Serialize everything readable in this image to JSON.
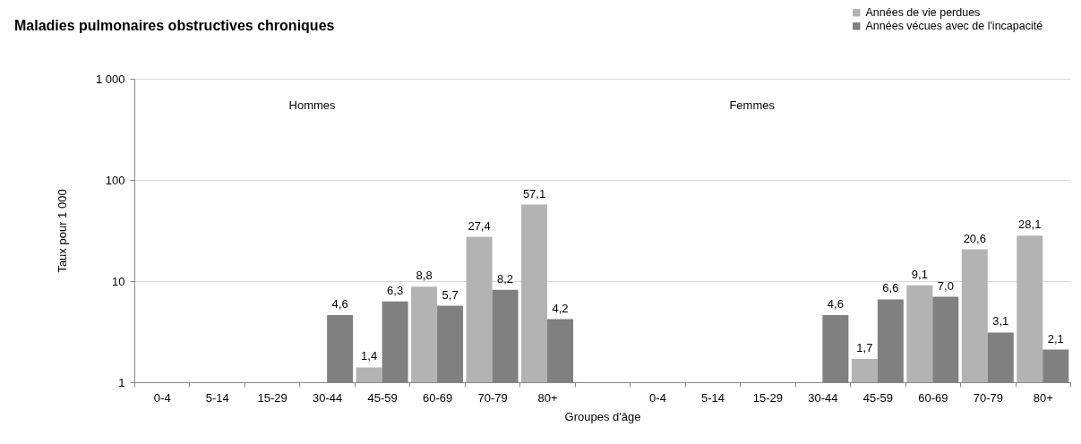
{
  "chart_data": {
    "type": "bar",
    "title": "Maladies pulmonaires obstructives chroniques",
    "xlabel": "Groupes d'âge",
    "ylabel": "Taux pour 1 000",
    "categories": [
      "0-4",
      "5-14",
      "15-29",
      "30-44",
      "45-59",
      "60-69",
      "70-79",
      "80+",
      null,
      "0-4",
      "5-14",
      "15-29",
      "30-44",
      "45-59",
      "60-69",
      "70-79",
      "80+"
    ],
    "series": [
      {
        "name": "Années de vie perdues",
        "color": "#b3b3b3",
        "values": [
          null,
          null,
          null,
          null,
          1.4,
          8.8,
          27.4,
          57.1,
          null,
          null,
          null,
          null,
          null,
          1.7,
          9.1,
          20.6,
          28.1
        ],
        "value_labels": [
          null,
          null,
          null,
          null,
          "1,4",
          "8,8",
          "27,4",
          "57,1",
          null,
          null,
          null,
          null,
          null,
          "1,7",
          "9,1",
          "20,6",
          "28,1"
        ]
      },
      {
        "name": "Années vécues avec de l'incapacité",
        "color": "#808080",
        "values": [
          null,
          null,
          null,
          4.6,
          6.3,
          5.7,
          8.2,
          4.2,
          null,
          null,
          null,
          null,
          4.6,
          6.6,
          7.0,
          3.1,
          2.1
        ],
        "value_labels": [
          null,
          null,
          null,
          "4,6",
          "6,3",
          "5,7",
          "8,2",
          "4,2",
          null,
          null,
          null,
          null,
          "4,6",
          "6,6",
          "7,0",
          "3,1",
          "2,1"
        ]
      }
    ],
    "log": true,
    "ylim": [
      1,
      1000
    ],
    "yticks": [
      1,
      10,
      100,
      {
        "value": 1000,
        "label": "1 000"
      }
    ],
    "grid": "y",
    "legend": "top right",
    "annotations": [
      "Hommes",
      "Femmes"
    ]
  }
}
